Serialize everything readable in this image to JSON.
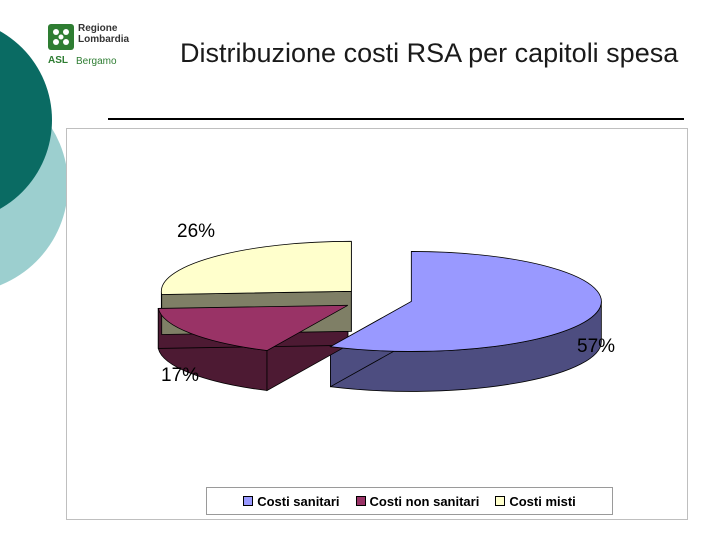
{
  "slide": {
    "title": "Distribuzione costi RSA per capitoli spesa"
  },
  "logo": {
    "region_line1": "Regione",
    "region_line2": "Lombardia",
    "asl": "ASL",
    "city": "Bergamo"
  },
  "colors": {
    "decor_dark": "#0a6b63",
    "decor_light": "#9ccfcf",
    "rule": "#000000"
  },
  "chart_data": {
    "type": "pie",
    "style": "3d-exploded",
    "slices": [
      {
        "label": "Costi sanitari",
        "value": 57,
        "display": "57%",
        "top": "#9999ff",
        "side": "#4d4d80"
      },
      {
        "label": "Costi non sanitari",
        "value": 17,
        "display": "17%",
        "top": "#993366",
        "side": "#4d1a33"
      },
      {
        "label": "Costi misti",
        "value": 26,
        "display": "26%",
        "top": "#ffffcc",
        "side": "#7f7f66"
      }
    ],
    "legend_position": "bottom",
    "grid": false
  }
}
